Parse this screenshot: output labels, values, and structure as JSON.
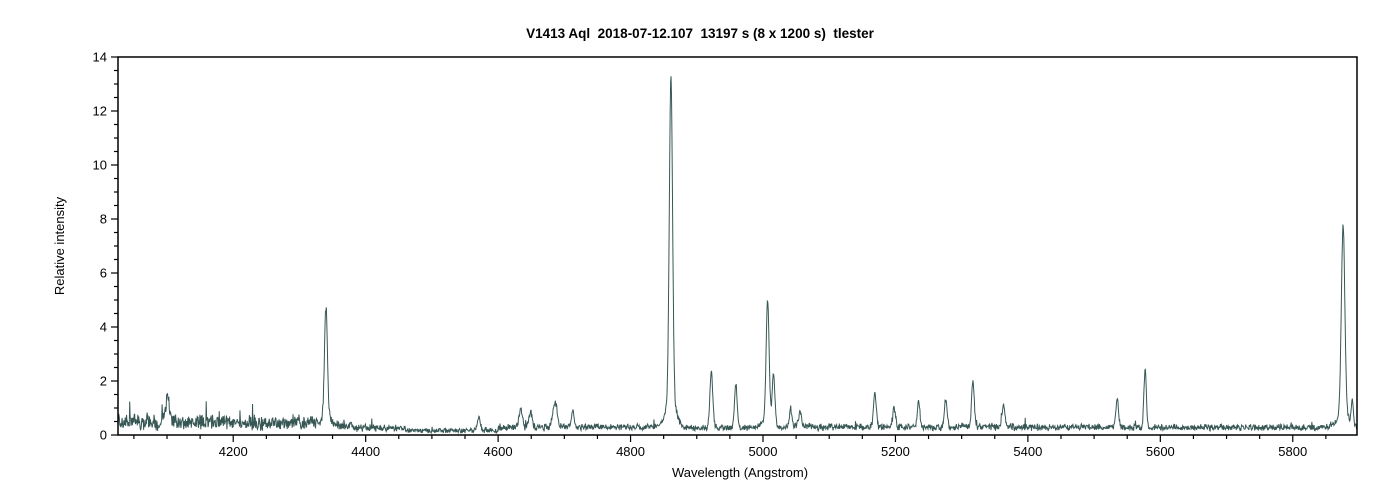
{
  "chart_data": {
    "type": "line",
    "title": "V1413 Aql  2018-07-12.107  13197 s (8 x 1200 s)  tlester",
    "xlabel": "Wavelength (Angstrom)",
    "ylabel": "Relative intensity",
    "xlim": [
      4026,
      5897
    ],
    "ylim": [
      0,
      14
    ],
    "x_major_ticks": [
      4200,
      4400,
      4600,
      4800,
      5000,
      5200,
      5400,
      5600,
      5800
    ],
    "x_minor_tick_step": 50,
    "y_major_ticks": [
      0,
      2,
      4,
      6,
      8,
      10,
      12,
      14
    ],
    "y_minor_tick_step": 0.5,
    "grid": false,
    "legend": false,
    "line_color": "#375755",
    "axis_color": "#000000",
    "noise_seed": 20180712,
    "emission_peaks": [
      {
        "wavelength": 4101,
        "intensity": 1.55,
        "sigma": 2.2
      },
      {
        "wavelength": 4340,
        "intensity": 4.75,
        "sigma": 2.2
      },
      {
        "wavelength": 4571,
        "intensity": 0.6,
        "sigma": 2.5
      },
      {
        "wavelength": 4634,
        "intensity": 0.95,
        "sigma": 2.5
      },
      {
        "wavelength": 4649,
        "intensity": 0.85,
        "sigma": 2.5
      },
      {
        "wavelength": 4686,
        "intensity": 1.2,
        "sigma": 3.5
      },
      {
        "wavelength": 4713,
        "intensity": 0.8,
        "sigma": 2.2
      },
      {
        "wavelength": 4861,
        "intensity": 13.35,
        "sigma": 2.4
      },
      {
        "wavelength": 4922,
        "intensity": 2.3,
        "sigma": 2.2
      },
      {
        "wavelength": 4959,
        "intensity": 1.9,
        "sigma": 2.0
      },
      {
        "wavelength": 5007,
        "intensity": 5.0,
        "sigma": 2.2
      },
      {
        "wavelength": 5016,
        "intensity": 2.1,
        "sigma": 2.0
      },
      {
        "wavelength": 5042,
        "intensity": 0.85,
        "sigma": 2.2
      },
      {
        "wavelength": 5056,
        "intensity": 0.85,
        "sigma": 2.2
      },
      {
        "wavelength": 5169,
        "intensity": 1.6,
        "sigma": 2.0
      },
      {
        "wavelength": 5198,
        "intensity": 1.05,
        "sigma": 2.0
      },
      {
        "wavelength": 5235,
        "intensity": 1.25,
        "sigma": 2.0
      },
      {
        "wavelength": 5276,
        "intensity": 1.35,
        "sigma": 2.0
      },
      {
        "wavelength": 5317,
        "intensity": 2.0,
        "sigma": 2.0
      },
      {
        "wavelength": 5363,
        "intensity": 1.1,
        "sigma": 2.2
      },
      {
        "wavelength": 5535,
        "intensity": 1.3,
        "sigma": 2.0
      },
      {
        "wavelength": 5577,
        "intensity": 2.45,
        "sigma": 1.8
      },
      {
        "wavelength": 5876,
        "intensity": 7.75,
        "sigma": 2.6
      },
      {
        "wavelength": 5890,
        "intensity": 1.2,
        "sigma": 1.6
      }
    ],
    "continuum_segments": [
      {
        "from": 4026,
        "to": 4190,
        "base": 0.5,
        "noise": 0.38
      },
      {
        "from": 4190,
        "to": 4330,
        "base": 0.45,
        "noise": 0.33
      },
      {
        "from": 4330,
        "to": 4380,
        "base": 0.35,
        "noise": 0.25
      },
      {
        "from": 4380,
        "to": 4460,
        "base": 0.25,
        "noise": 0.16
      },
      {
        "from": 4460,
        "to": 4600,
        "base": 0.16,
        "noise": 0.11
      },
      {
        "from": 4600,
        "to": 4730,
        "base": 0.28,
        "noise": 0.16
      },
      {
        "from": 4730,
        "to": 4870,
        "base": 0.3,
        "noise": 0.13
      },
      {
        "from": 4870,
        "to": 5030,
        "base": 0.27,
        "noise": 0.13
      },
      {
        "from": 5030,
        "to": 5420,
        "base": 0.3,
        "noise": 0.16
      },
      {
        "from": 5420,
        "to": 5897,
        "base": 0.28,
        "noise": 0.14
      }
    ]
  }
}
